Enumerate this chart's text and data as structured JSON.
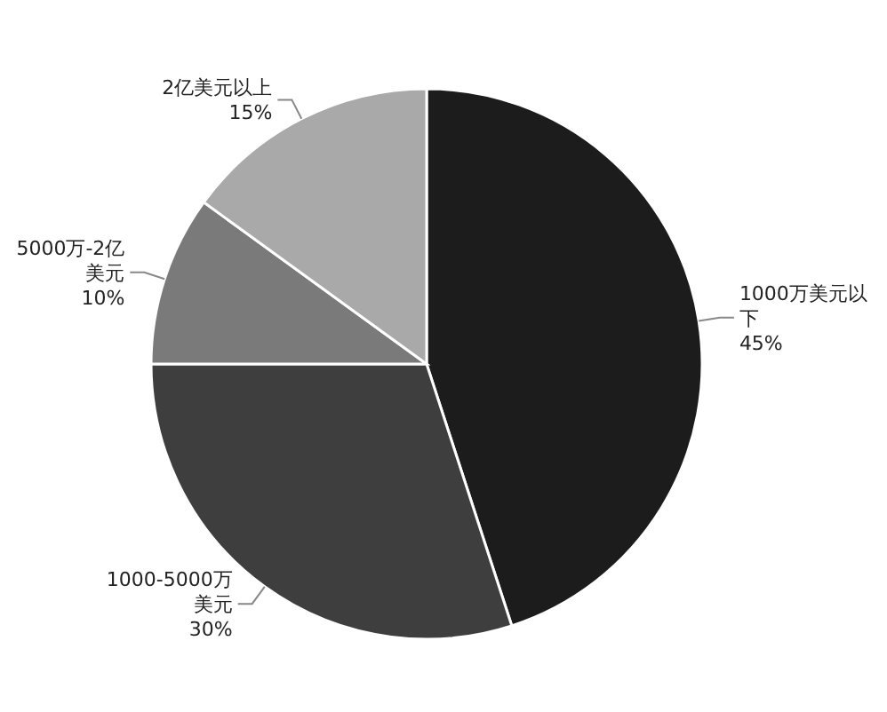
{
  "chart_data": {
    "type": "pie",
    "categories": [
      "1000万美元以下",
      "1000-5000万美元",
      "5000万-2亿美元",
      "2亿美元以上"
    ],
    "values": [
      45,
      30,
      10,
      15
    ],
    "colors": [
      "#1c1c1c",
      "#3e3e3e",
      "#7a7a7a",
      "#a9a9a9"
    ],
    "value_labels": [
      "45%",
      "30%",
      "10%",
      "15%"
    ]
  }
}
